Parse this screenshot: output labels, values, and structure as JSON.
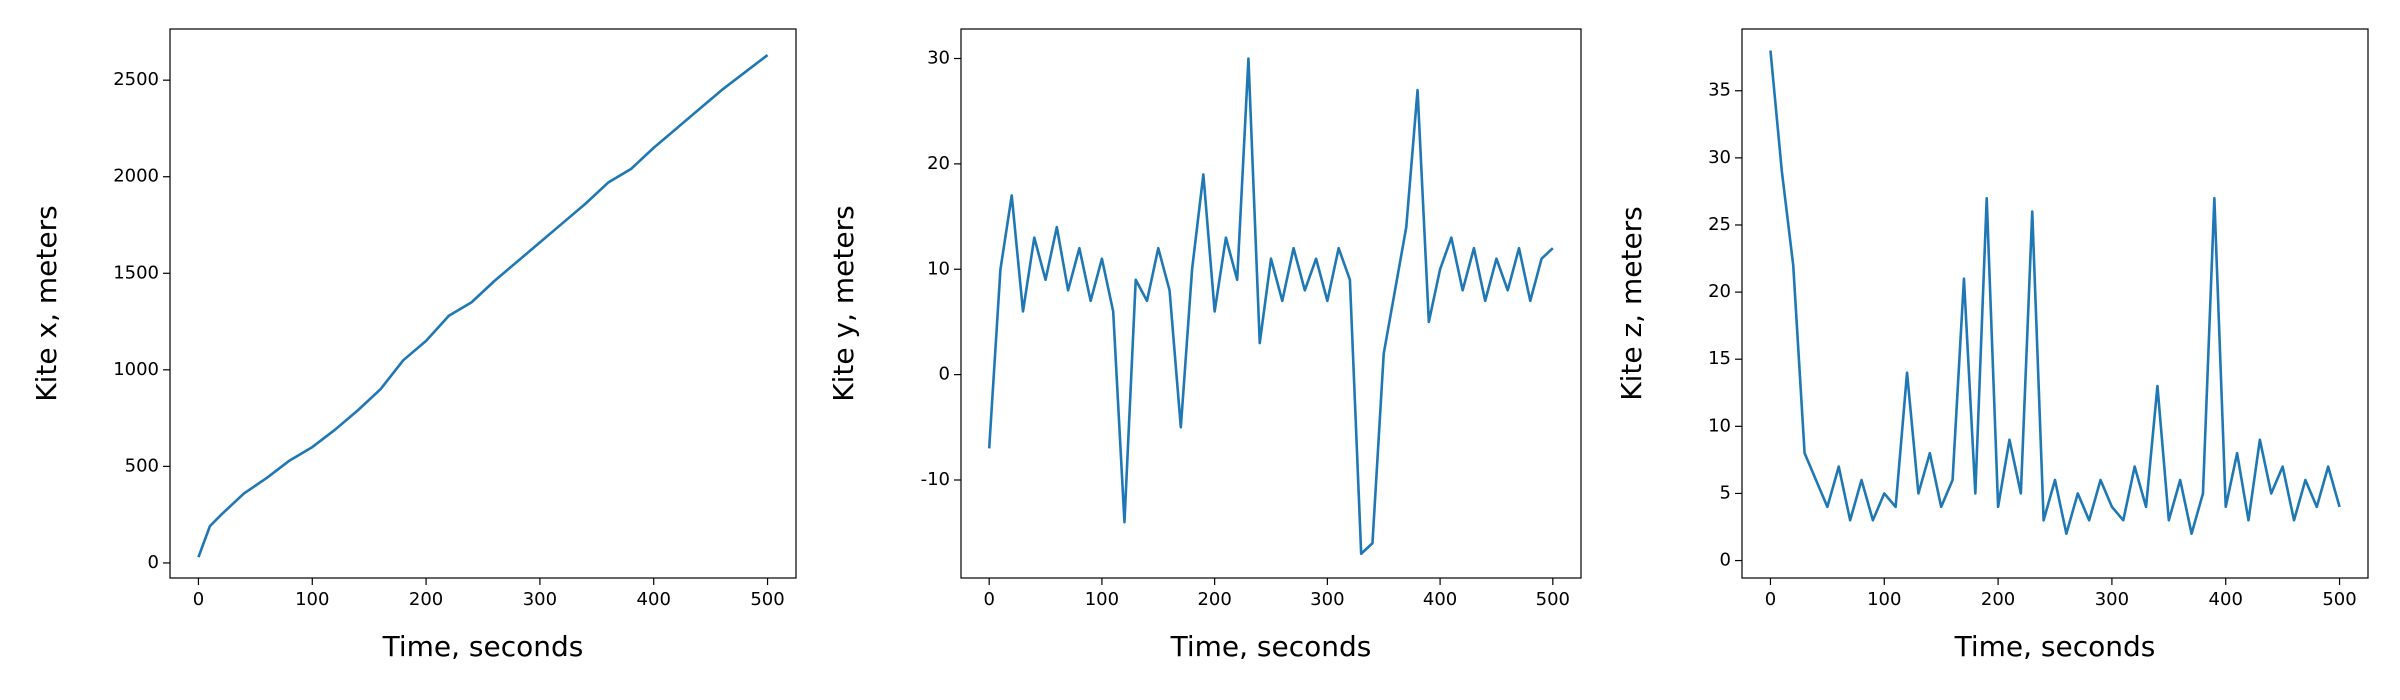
{
  "chart_data": [
    {
      "type": "line",
      "xlabel": "Time, seconds",
      "ylabel": "Kite x, meters",
      "x": [
        0,
        10,
        20,
        40,
        60,
        80,
        100,
        120,
        140,
        160,
        180,
        200,
        220,
        240,
        260,
        280,
        300,
        320,
        340,
        360,
        380,
        400,
        420,
        440,
        460,
        480,
        500
      ],
      "series": [
        {
          "name": "x",
          "color": "#1f77b4",
          "values": [
            30,
            190,
            250,
            360,
            440,
            530,
            600,
            690,
            790,
            900,
            1050,
            1150,
            1280,
            1350,
            1460,
            1560,
            1660,
            1760,
            1860,
            1970,
            2040,
            2150,
            2250,
            2350,
            2450,
            2540,
            2630
          ]
        }
      ],
      "xlim": [
        -25,
        525
      ],
      "ylim": [
        -78,
        2765
      ],
      "xticks": [
        0,
        100,
        200,
        300,
        400,
        500
      ],
      "yticks": [
        0,
        500,
        1000,
        1500,
        2000,
        2500
      ]
    },
    {
      "type": "line",
      "xlabel": "Time, seconds",
      "ylabel": "Kite y, meters",
      "x": [
        0,
        10,
        20,
        30,
        40,
        50,
        60,
        70,
        80,
        90,
        100,
        110,
        120,
        130,
        140,
        150,
        160,
        170,
        180,
        190,
        200,
        210,
        220,
        230,
        240,
        250,
        260,
        270,
        280,
        290,
        300,
        310,
        320,
        330,
        340,
        350,
        360,
        370,
        380,
        390,
        400,
        410,
        420,
        430,
        440,
        450,
        460,
        470,
        480,
        490,
        500
      ],
      "series": [
        {
          "name": "y",
          "color": "#1f77b4",
          "values": [
            -7,
            10,
            17,
            6,
            13,
            9,
            14,
            8,
            12,
            7,
            11,
            6,
            -14,
            9,
            7,
            12,
            8,
            -5,
            10,
            19,
            6,
            13,
            9,
            30,
            3,
            11,
            7,
            12,
            8,
            11,
            7,
            12,
            9,
            -17,
            -16,
            2,
            8,
            14,
            27,
            5,
            10,
            13,
            8,
            12,
            7,
            11,
            8,
            12,
            7,
            11,
            12
          ]
        }
      ],
      "xlim": [
        -25,
        525
      ],
      "ylim": [
        -19.3,
        32.8
      ],
      "xticks": [
        0,
        100,
        200,
        300,
        400,
        500
      ],
      "yticks": [
        -10,
        0,
        10,
        20,
        30
      ]
    },
    {
      "type": "line",
      "xlabel": "Time, seconds",
      "ylabel": "Kite z, meters",
      "x": [
        0,
        10,
        20,
        30,
        40,
        50,
        60,
        70,
        80,
        90,
        100,
        110,
        120,
        130,
        140,
        150,
        160,
        170,
        180,
        190,
        200,
        210,
        220,
        230,
        240,
        250,
        260,
        270,
        280,
        290,
        300,
        310,
        320,
        330,
        340,
        350,
        360,
        370,
        380,
        390,
        400,
        410,
        420,
        430,
        440,
        450,
        460,
        470,
        480,
        490,
        500
      ],
      "series": [
        {
          "name": "z",
          "color": "#1f77b4",
          "values": [
            38,
            29,
            22,
            8,
            6,
            4,
            7,
            3,
            6,
            3,
            5,
            4,
            14,
            5,
            8,
            4,
            6,
            21,
            5,
            27,
            4,
            9,
            5,
            26,
            3,
            6,
            2,
            5,
            3,
            6,
            4,
            3,
            7,
            4,
            13,
            3,
            6,
            2,
            5,
            27,
            4,
            8,
            3,
            9,
            5,
            7,
            3,
            6,
            4,
            7,
            4
          ]
        }
      ],
      "xlim": [
        -25,
        525
      ],
      "ylim": [
        -1.3,
        39.6
      ],
      "xticks": [
        0,
        100,
        200,
        300,
        400,
        500
      ],
      "yticks": [
        0,
        5,
        10,
        15,
        20,
        25,
        30,
        35
      ]
    }
  ]
}
